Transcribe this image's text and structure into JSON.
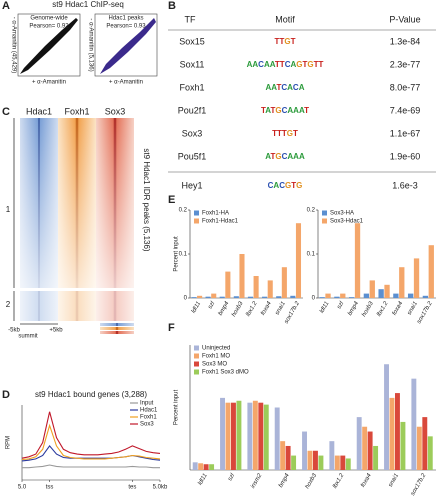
{
  "panel_labels": [
    "A",
    "B",
    "C",
    "D",
    "E",
    "F"
  ],
  "scatter": {
    "title": "st9 Hdac1 ChIP-seq",
    "plots": [
      {
        "subtitle": "Genome-wide",
        "stat": "Pearson= 0.92",
        "x_label": "+ α-Amanitin",
        "y_label": "- α-Amanitin (45,429)"
      },
      {
        "subtitle": "Hdac1 peaks",
        "stat": "Pearson= 0.93",
        "x_label": "+ α-Amanitin",
        "y_label": "- α-Amanitin (5,136)"
      }
    ]
  },
  "motifs": {
    "headers": [
      "TF",
      "Motif",
      "P-Value"
    ],
    "rows": [
      [
        "Sox15",
        "TTGT",
        "1.3e-84"
      ],
      [
        "Sox11",
        "AACAATTCAGTGTT",
        "2.3e-77"
      ],
      [
        "Foxh1",
        "AATCACA",
        "8.0e-77"
      ],
      [
        "Pou2f1",
        "TATGCAAAT",
        "7.4e-69"
      ],
      [
        "Sox3",
        "TTTGT",
        "1.1e-67"
      ],
      [
        "Pou5f1",
        "ATGCAAA",
        "1.9e-60"
      ],
      [
        "Hey1",
        "CACGTG",
        "1.6e-3"
      ]
    ]
  },
  "heatmap": {
    "columns": [
      "Hdac1",
      "Foxh1",
      "Sox3"
    ],
    "clusters": [
      "1",
      "2"
    ],
    "side_label": "st9 Hdac1 IDR peaks (5,136)",
    "x_labels": [
      "-5kb",
      "summit",
      "+5kb"
    ]
  },
  "chart_data": [
    {
      "type": "line",
      "title": "st9 Hdac1 bound genes (3,288)",
      "y_label": "RPM",
      "x": [
        0,
        1,
        2,
        3,
        4,
        5,
        6,
        7,
        8,
        9,
        10,
        11,
        12,
        13,
        14,
        15,
        16,
        17,
        18,
        19,
        20
      ],
      "xlim": [
        0,
        20
      ],
      "xticks": [
        {
          "value": 0,
          "label": "5.0"
        },
        {
          "value": 4,
          "label": "tss"
        },
        {
          "value": 16,
          "label": "tes"
        },
        {
          "value": 20,
          "label": "5.0kb"
        }
      ],
      "ylim": [
        0,
        1.1
      ],
      "series": [
        {
          "name": "Input",
          "color": "#999999",
          "values": [
            0.18,
            0.18,
            0.19,
            0.2,
            0.22,
            0.2,
            0.19,
            0.19,
            0.19,
            0.19,
            0.19,
            0.19,
            0.19,
            0.19,
            0.19,
            0.19,
            0.2,
            0.19,
            0.19,
            0.18,
            0.18
          ]
        },
        {
          "name": "Hdac1",
          "color": "#2b3a9e",
          "values": [
            0.28,
            0.29,
            0.31,
            0.36,
            0.5,
            0.38,
            0.33,
            0.32,
            0.32,
            0.32,
            0.32,
            0.32,
            0.32,
            0.32,
            0.33,
            0.34,
            0.36,
            0.34,
            0.32,
            0.3,
            0.29
          ]
        },
        {
          "name": "Foxh1",
          "color": "#f0a020",
          "values": [
            0.3,
            0.31,
            0.34,
            0.45,
            0.8,
            0.5,
            0.36,
            0.33,
            0.32,
            0.31,
            0.31,
            0.31,
            0.31,
            0.32,
            0.33,
            0.34,
            0.36,
            0.35,
            0.33,
            0.32,
            0.31
          ]
        },
        {
          "name": "Sox3",
          "color": "#c0182a",
          "values": [
            0.32,
            0.34,
            0.38,
            0.55,
            1.0,
            0.62,
            0.45,
            0.4,
            0.38,
            0.37,
            0.37,
            0.37,
            0.38,
            0.39,
            0.41,
            0.45,
            0.5,
            0.46,
            0.42,
            0.4,
            0.39
          ]
        }
      ]
    },
    {
      "type": "bar",
      "y_label": "Percent input",
      "categories": [
        "ldl11",
        "szl",
        "bmp4",
        "hoxb3",
        "lbx1.2",
        "foxa4",
        "snai1",
        "sox17b.2"
      ],
      "ylim": [
        0,
        0.2
      ],
      "yticks": [
        0,
        0.1,
        0.2
      ],
      "series": [
        {
          "name": "Foxh1-HA",
          "color": "#5b8fd0",
          "values": [
            0.002,
            0.003,
            0.003,
            0.004,
            0.003,
            0.003,
            0.004,
            0.005
          ]
        },
        {
          "name": "Foxh1-Hdac1",
          "color": "#f4a66a",
          "values": [
            0.005,
            0.01,
            0.06,
            0.1,
            0.05,
            0.04,
            0.07,
            0.17
          ]
        }
      ]
    },
    {
      "type": "bar",
      "categories": [
        "ldl11",
        "szl",
        "bmp4",
        "hoxb3",
        "lbx1.2",
        "foxa4",
        "snai1",
        "sox17b.2"
      ],
      "ylim": [
        0,
        0.2
      ],
      "yticks": [
        0,
        0.1,
        0.2
      ],
      "series": [
        {
          "name": "Sox3-HA",
          "color": "#5b8fd0",
          "values": [
            0.002,
            0.003,
            0.002,
            0.01,
            0.02,
            0.01,
            0.01,
            0.005
          ]
        },
        {
          "name": "Sox3-Hdac1",
          "color": "#f4a66a",
          "values": [
            0.01,
            0.01,
            0.17,
            0.04,
            0.03,
            0.07,
            0.09,
            0.12
          ]
        }
      ]
    },
    {
      "type": "bar",
      "y_label": "Percent input",
      "categories": [
        "ldl11",
        "szl",
        "insm2",
        "bmp4",
        "hoxb3",
        "lbx1.2",
        "foxa4",
        "snai1",
        "sox17b.2"
      ],
      "ylim": [
        0,
        1.3
      ],
      "series": [
        {
          "name": "Uninjected",
          "color": "#aab4d8",
          "values": [
            0.08,
            0.75,
            0.7,
            0.65,
            0.4,
            0.3,
            0.55,
            1.1,
            0.95
          ]
        },
        {
          "name": "Foxh1 MO",
          "color": "#f4a66a",
          "values": [
            0.07,
            0.7,
            0.72,
            0.3,
            0.2,
            0.15,
            0.45,
            0.75,
            0.45
          ]
        },
        {
          "name": "Sox3 MO",
          "color": "#d9483b",
          "values": [
            0.06,
            0.7,
            0.7,
            0.25,
            0.2,
            0.15,
            0.4,
            0.8,
            0.55
          ]
        },
        {
          "name": "Foxh1 Sox3 dMO",
          "color": "#9ccc5a",
          "values": [
            0.06,
            0.72,
            0.68,
            0.15,
            0.15,
            0.12,
            0.25,
            0.5,
            0.35
          ]
        }
      ]
    }
  ]
}
